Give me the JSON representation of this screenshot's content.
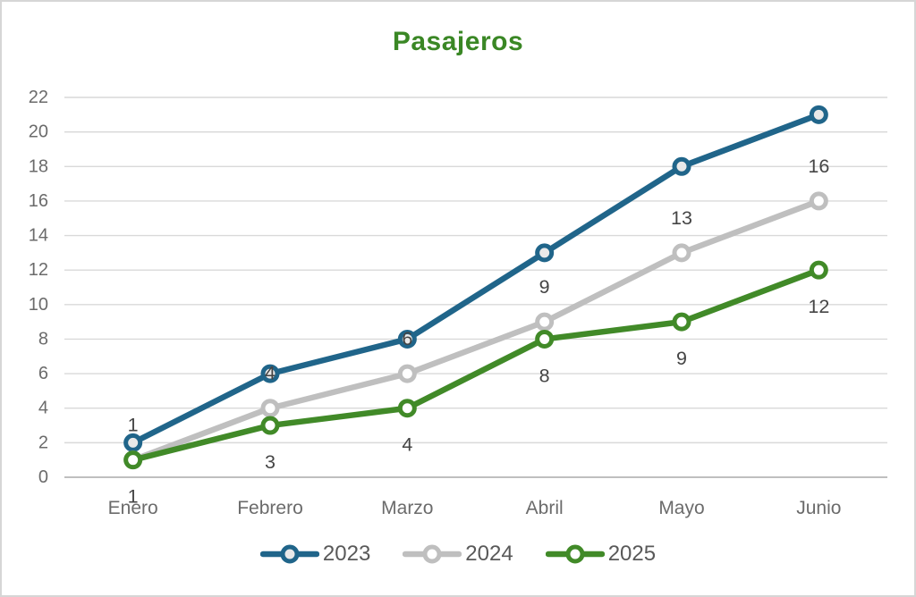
{
  "chart_data": {
    "type": "line",
    "title": "Pasajeros",
    "title_color": "#3a8725",
    "categories": [
      "Enero",
      "Febrero",
      "Marzo",
      "Abril",
      "Mayo",
      "Junio"
    ],
    "series": [
      {
        "name": "2023",
        "color": "#20658a",
        "marker_fill": "#e9e9e9",
        "values": [
          2,
          6,
          8,
          13,
          18,
          21
        ],
        "labels": "none"
      },
      {
        "name": "2024",
        "color": "#bfbfbf",
        "marker_fill": "#ffffff",
        "values": [
          1,
          4,
          6,
          9,
          13,
          16
        ],
        "labels": "above"
      },
      {
        "name": "2025",
        "color": "#418a28",
        "marker_fill": "#ffffff",
        "values": [
          1,
          3,
          4,
          8,
          9,
          12
        ],
        "labels": "below"
      }
    ],
    "y_axis": {
      "min": 0,
      "max": 22,
      "step": 2,
      "tick_labels": [
        "0",
        "2",
        "4",
        "6",
        "8",
        "10",
        "12",
        "14",
        "16",
        "18",
        "20",
        "22"
      ]
    },
    "grid": true,
    "legend_position": "bottom",
    "gridline_color": "#d9d9d9",
    "axis_line_color": "#bfbfbf",
    "axis_text_color": "#6b6b6b",
    "data_label_color": "#454545"
  }
}
